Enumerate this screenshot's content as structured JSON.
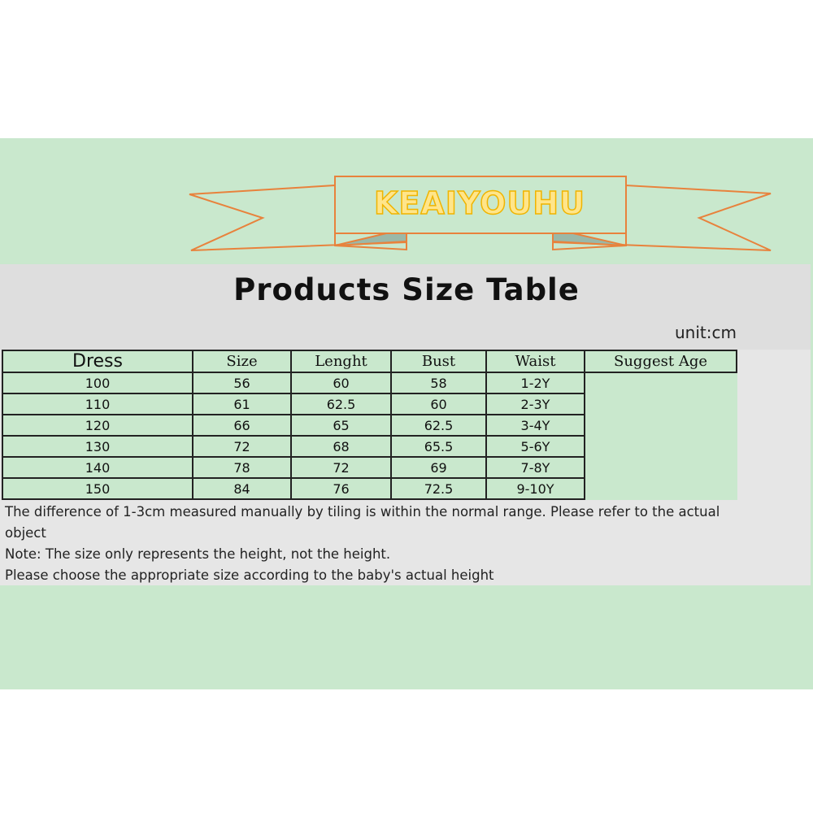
{
  "brand": "KEAIYOUHU",
  "colors": {
    "background_green": "#c9e8cd",
    "band_gray": "#e6e6e6",
    "ribbon_orange": "#e8823c",
    "brand_yellow": "#ffe58a"
  },
  "title": "Products Size Table",
  "unit": "unit:cm",
  "table": {
    "category": "Dress",
    "headers": [
      "Size",
      "Lenght",
      "Bust",
      "Waist",
      "Suggest Age"
    ],
    "rows": [
      [
        "100",
        "56",
        "60",
        "58",
        "1-2Y"
      ],
      [
        "110",
        "61",
        "62.5",
        "60",
        "2-3Y"
      ],
      [
        "120",
        "66",
        "65",
        "62.5",
        "3-4Y"
      ],
      [
        "130",
        "72",
        "68",
        "65.5",
        "5-6Y"
      ],
      [
        "140",
        "78",
        "72",
        "69",
        "7-8Y"
      ],
      [
        "150",
        "84",
        "76",
        "72.5",
        "9-10Y"
      ]
    ]
  },
  "notes": [
    "The difference of 1-3cm measured manually by tiling is within the normal range. Please refer to the actual",
    "object",
    "Note: The size only represents the height, not the height.",
    "Please choose the appropriate size according to the baby's actual height"
  ]
}
